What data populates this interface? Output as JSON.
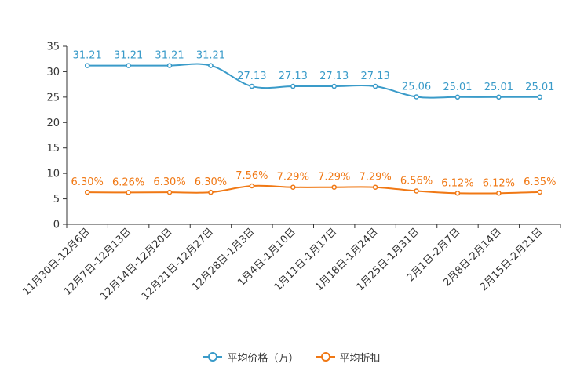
{
  "chart_data": {
    "type": "line",
    "categories": [
      "11月30日-12月6日",
      "12月7日-12月13日",
      "12月14日-12月20日",
      "12月21日-12月27日",
      "12月28日-1月3日",
      "1月4日-1月10日",
      "1月11日-1月17日",
      "1月18日-1月24日",
      "1月25日-1月31日",
      "2月1日-2月7日",
      "2月8日-2月14日",
      "2月15日-2月21日"
    ],
    "ylim": [
      0,
      35
    ],
    "yticks": [
      0,
      5,
      10,
      15,
      20,
      25,
      30,
      35
    ],
    "series": [
      {
        "name": "平均价格（万）",
        "color": "#3a9bc9",
        "values": [
          31.21,
          31.21,
          31.21,
          31.21,
          27.13,
          27.13,
          27.13,
          27.13,
          25.06,
          25.01,
          25.01,
          25.01
        ],
        "labels": [
          "31.21",
          "31.21",
          "31.21",
          "31.21",
          "27.13",
          "27.13",
          "27.13",
          "27.13",
          "25.06",
          "25.01",
          "25.01",
          "25.01"
        ]
      },
      {
        "name": "平均折扣",
        "color": "#f07814",
        "values": [
          6.3,
          6.26,
          6.3,
          6.3,
          7.56,
          7.29,
          7.29,
          7.29,
          6.56,
          6.12,
          6.12,
          6.35
        ],
        "labels": [
          "6.30%",
          "6.26%",
          "6.30%",
          "6.30%",
          "7.56%",
          "7.29%",
          "7.29%",
          "7.29%",
          "6.56%",
          "6.12%",
          "6.12%",
          "6.35%"
        ]
      }
    ]
  }
}
